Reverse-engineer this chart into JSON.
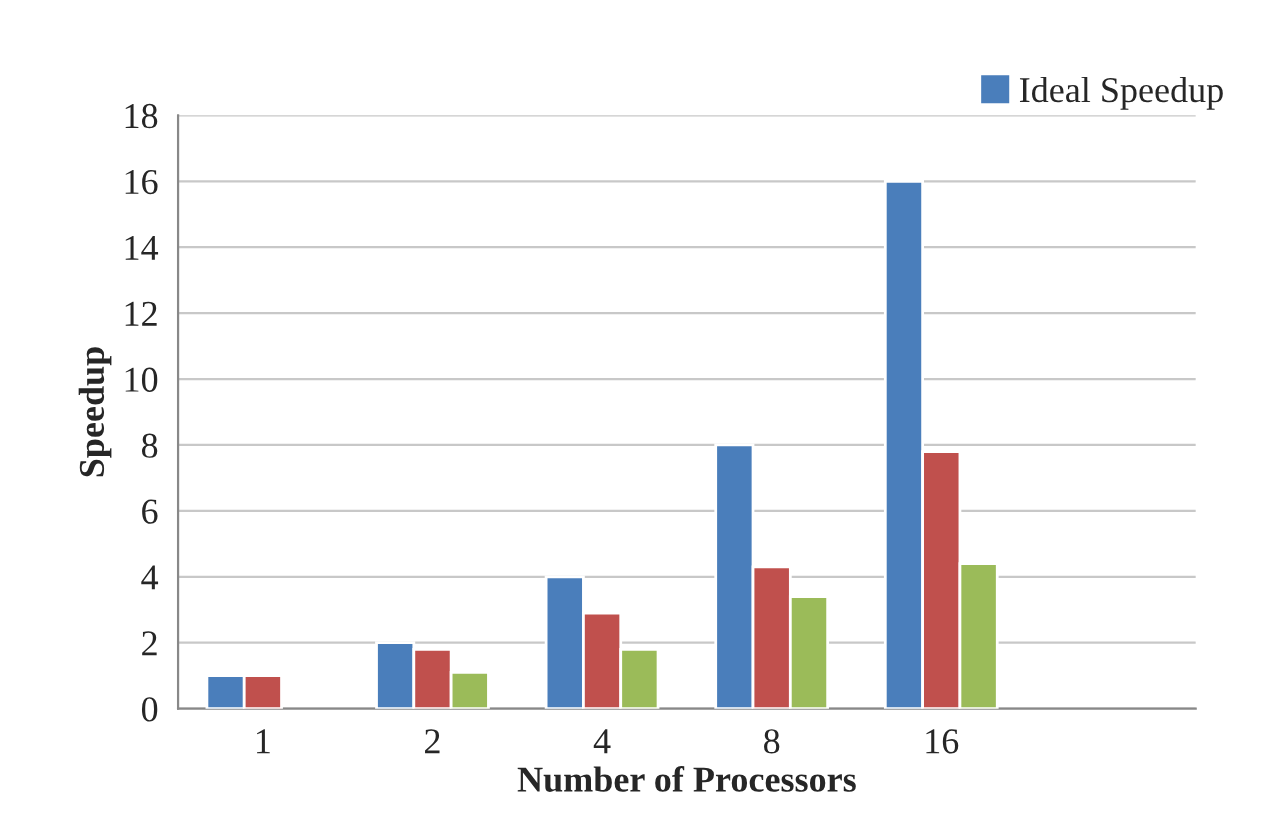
{
  "chart_data": {
    "type": "bar",
    "xlabel": "Number of Processors",
    "ylabel": "Speedup",
    "categories": [
      "1",
      "2",
      "4",
      "8",
      "16",
      null
    ],
    "series": [
      {
        "name": "Ideal Speedup",
        "color": "#4a7ebb",
        "values": [
          1,
          2,
          4,
          8,
          16,
          null
        ]
      },
      {
        "color": "#c0504d",
        "values": [
          1,
          1.8,
          2.9,
          4.3,
          7.8,
          null
        ]
      },
      {
        "color": "#9bbb59",
        "values": [
          null,
          1.1,
          1.8,
          3.4,
          4.4,
          null
        ]
      }
    ],
    "ylim": [
      0,
      18
    ],
    "yticks": [
      0,
      2,
      4,
      6,
      8,
      10,
      12,
      14,
      16,
      18
    ],
    "grid": "y",
    "legend": "top right"
  }
}
